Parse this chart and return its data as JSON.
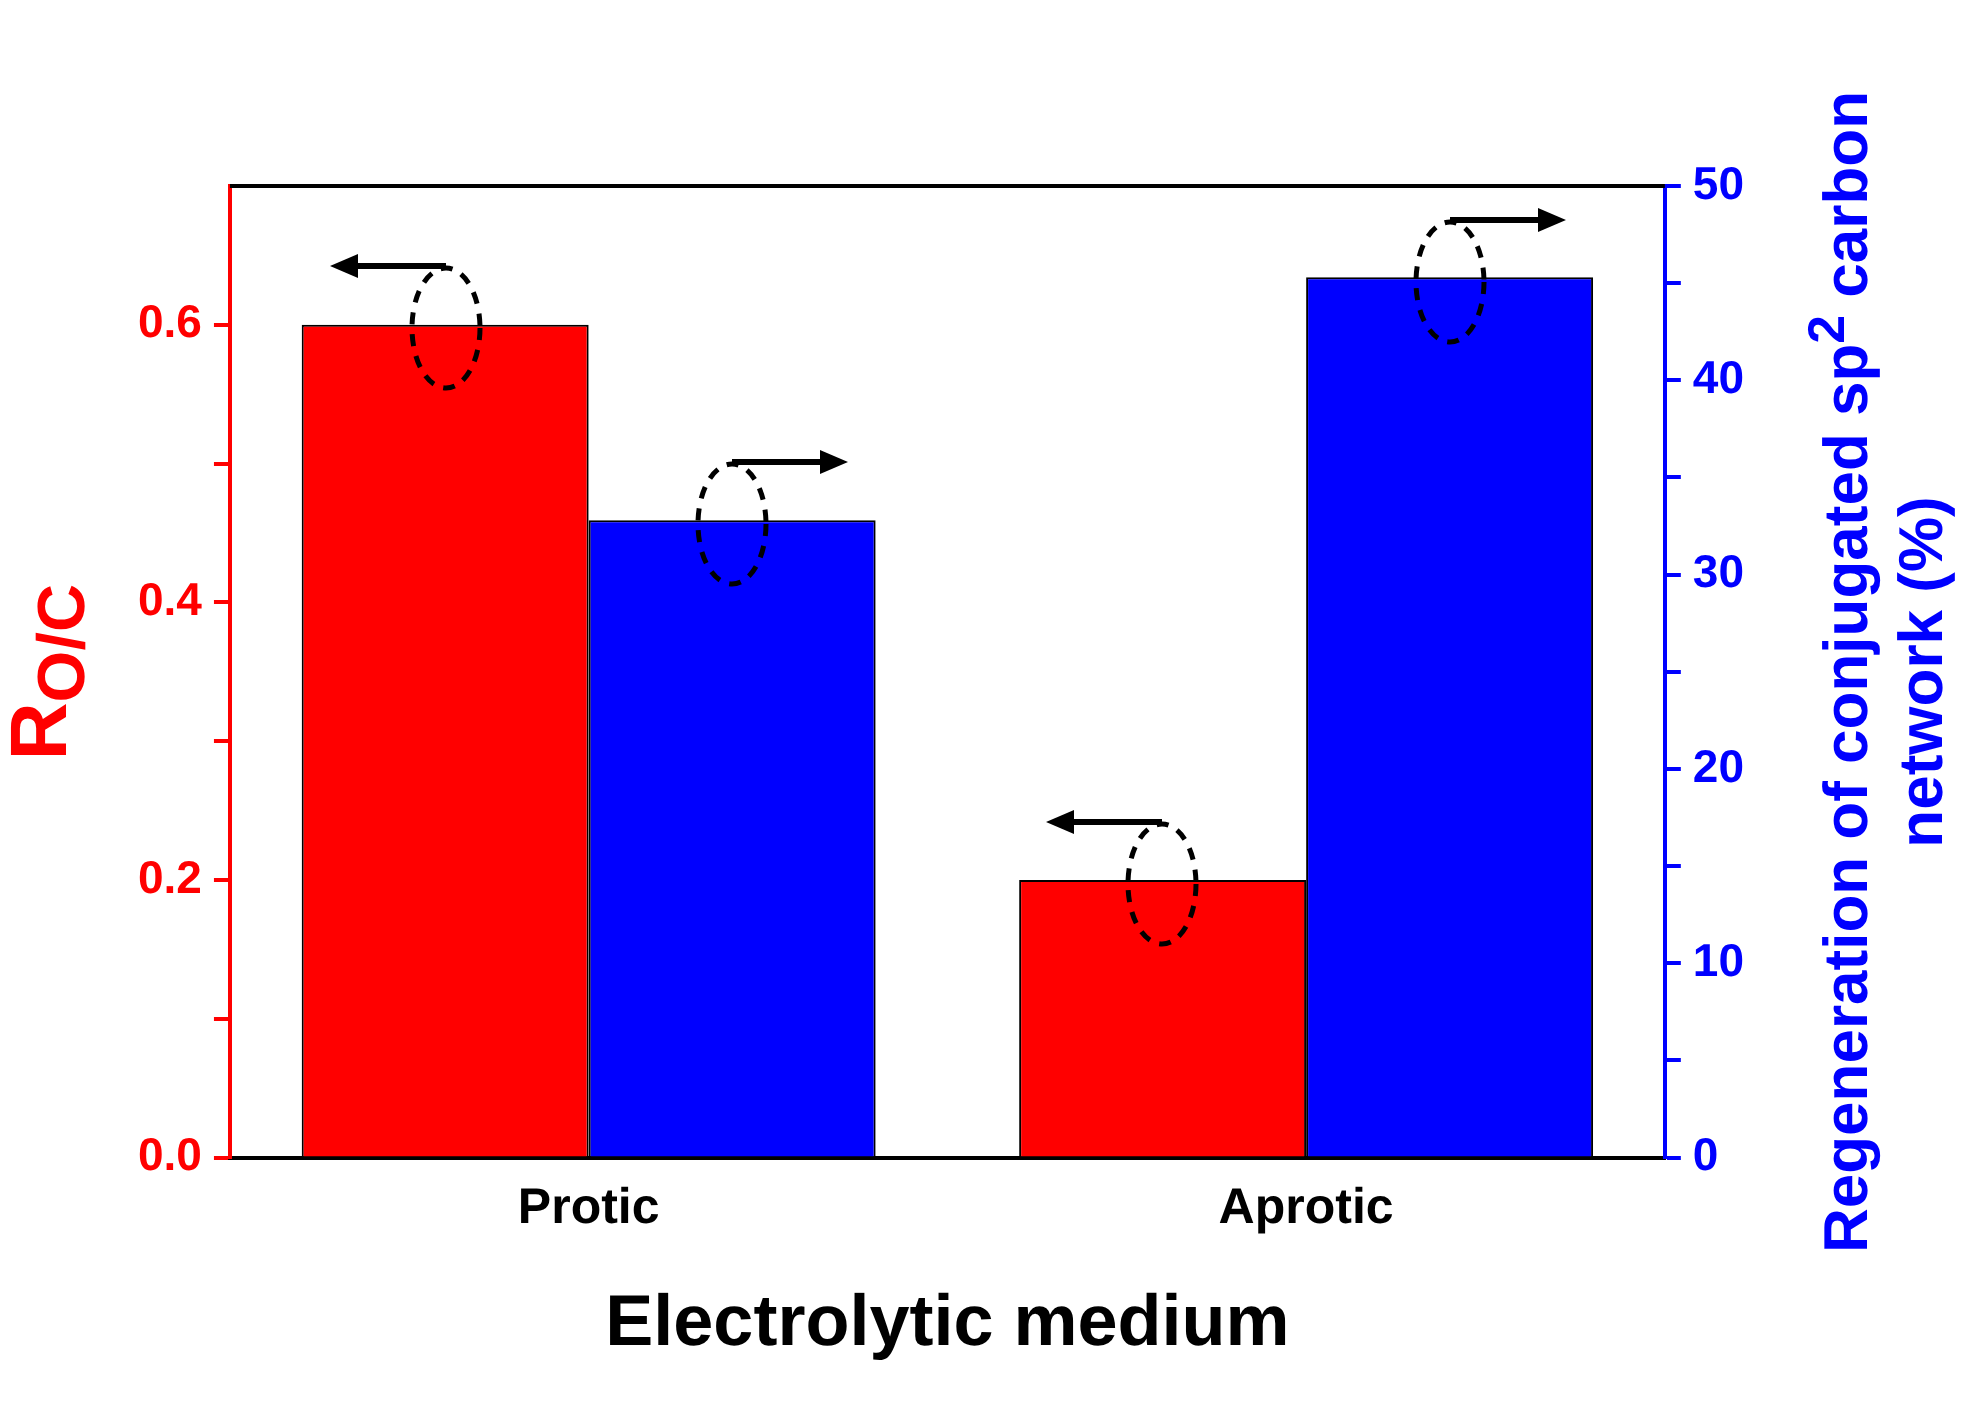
{
  "chart_data": {
    "type": "bar",
    "xlabel": "Electrolytic medium",
    "ylabel": "R$_{O/C}$",
    "y2label": "Regeneration of conjugated sp$^{2}$ carbon network (%)",
    "categories": [
      "Protic",
      "Aprotic"
    ],
    "series": [
      {
        "color": "#ff0000",
        "values": [
          0.6,
          0.2
        ]
      },
      {
        "color": "#0000ff",
        "values": [
          32.8,
          45.3
        ],
        "axis": "y2"
      }
    ],
    "ylim": [
      0,
      0.7
    ],
    "yticks": [
      {
        "value": 0,
        "label": "0.0"
      },
      {
        "value": 0.1,
        "label": null
      },
      {
        "value": 0.2,
        "label": "0.2"
      },
      {
        "value": 0.3,
        "label": null
      },
      {
        "value": 0.4,
        "label": "0.4"
      },
      {
        "value": 0.5,
        "label": null
      },
      {
        "value": 0.6,
        "label": "0.6"
      }
    ],
    "y2lim": [
      0,
      50
    ],
    "y2ticks": [
      0,
      {
        "value": 5,
        "label": null
      },
      10,
      {
        "value": 15,
        "label": null
      },
      20,
      {
        "value": 25,
        "label": null
      },
      30,
      {
        "value": 35,
        "label": null
      },
      40,
      {
        "value": 45,
        "label": null
      },
      50
    ],
    "grid": false,
    "legend": false
  }
}
